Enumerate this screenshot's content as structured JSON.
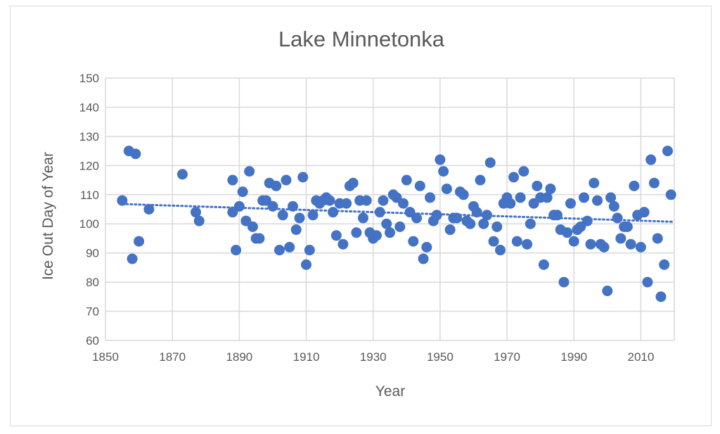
{
  "chart_data": {
    "type": "scatter",
    "title": "Lake Minnetonka",
    "xlabel": "Year",
    "ylabel": "Ice Out Day of Year",
    "xlim": [
      1850,
      2020
    ],
    "ylim": [
      60,
      150
    ],
    "x_ticks": [
      1850,
      1870,
      1890,
      1910,
      1930,
      1950,
      1970,
      1990,
      2010
    ],
    "y_ticks": [
      60,
      70,
      80,
      90,
      100,
      110,
      120,
      130,
      140,
      150
    ],
    "grid": true,
    "legend": "none",
    "colors": {
      "points": "#4472C4",
      "trendline": "#4472C4",
      "grid": "#d9d9d9",
      "text": "#595959"
    },
    "trendline": {
      "type": "linear",
      "style": "dotted",
      "x": [
        1855,
        2020
      ],
      "y": [
        106.8,
        100.7
      ]
    },
    "series": [
      {
        "points": [
          [
            1855,
            108
          ],
          [
            1857,
            125
          ],
          [
            1858,
            88
          ],
          [
            1859,
            124
          ],
          [
            1860,
            94
          ],
          [
            1863,
            105
          ],
          [
            1873,
            117
          ],
          [
            1877,
            104
          ],
          [
            1878,
            101
          ],
          [
            1888,
            104
          ],
          [
            1888,
            115
          ],
          [
            1889,
            91
          ],
          [
            1890,
            106
          ],
          [
            1891,
            111
          ],
          [
            1892,
            101
          ],
          [
            1893,
            118
          ],
          [
            1894,
            99
          ],
          [
            1895,
            95
          ],
          [
            1896,
            95
          ],
          [
            1897,
            108
          ],
          [
            1898,
            108
          ],
          [
            1899,
            114
          ],
          [
            1900,
            106
          ],
          [
            1901,
            113
          ],
          [
            1902,
            91
          ],
          [
            1903,
            103
          ],
          [
            1904,
            115
          ],
          [
            1905,
            92
          ],
          [
            1906,
            106
          ],
          [
            1907,
            98
          ],
          [
            1908,
            102
          ],
          [
            1909,
            116
          ],
          [
            1910,
            86
          ],
          [
            1911,
            91
          ],
          [
            1912,
            103
          ],
          [
            1913,
            108
          ],
          [
            1914,
            107
          ],
          [
            1915,
            108
          ],
          [
            1916,
            109
          ],
          [
            1917,
            108
          ],
          [
            1918,
            104
          ],
          [
            1919,
            96
          ],
          [
            1920,
            107
          ],
          [
            1921,
            93
          ],
          [
            1922,
            107
          ],
          [
            1923,
            113
          ],
          [
            1924,
            114
          ],
          [
            1925,
            97
          ],
          [
            1926,
            108
          ],
          [
            1927,
            102
          ],
          [
            1928,
            108
          ],
          [
            1929,
            97
          ],
          [
            1930,
            95
          ],
          [
            1931,
            96
          ],
          [
            1932,
            104
          ],
          [
            1933,
            108
          ],
          [
            1934,
            100
          ],
          [
            1935,
            97
          ],
          [
            1936,
            110
          ],
          [
            1937,
            109
          ],
          [
            1938,
            99
          ],
          [
            1939,
            107
          ],
          [
            1940,
            115
          ],
          [
            1941,
            104
          ],
          [
            1942,
            94
          ],
          [
            1943,
            102
          ],
          [
            1944,
            113
          ],
          [
            1945,
            88
          ],
          [
            1946,
            92
          ],
          [
            1947,
            109
          ],
          [
            1948,
            101
          ],
          [
            1949,
            103
          ],
          [
            1950,
            122
          ],
          [
            1951,
            118
          ],
          [
            1952,
            112
          ],
          [
            1953,
            98
          ],
          [
            1954,
            102
          ],
          [
            1955,
            102
          ],
          [
            1956,
            111
          ],
          [
            1957,
            110
          ],
          [
            1958,
            101
          ],
          [
            1959,
            100
          ],
          [
            1960,
            106
          ],
          [
            1961,
            104
          ],
          [
            1962,
            115
          ],
          [
            1963,
            100
          ],
          [
            1964,
            103
          ],
          [
            1965,
            121
          ],
          [
            1966,
            94
          ],
          [
            1967,
            99
          ],
          [
            1968,
            91
          ],
          [
            1969,
            107
          ],
          [
            1970,
            109
          ],
          [
            1971,
            107
          ],
          [
            1972,
            116
          ],
          [
            1973,
            94
          ],
          [
            1974,
            109
          ],
          [
            1975,
            118
          ],
          [
            1976,
            93
          ],
          [
            1977,
            100
          ],
          [
            1978,
            107
          ],
          [
            1979,
            113
          ],
          [
            1980,
            109
          ],
          [
            1981,
            86
          ],
          [
            1982,
            109
          ],
          [
            1983,
            112
          ],
          [
            1984,
            103
          ],
          [
            1985,
            103
          ],
          [
            1986,
            98
          ],
          [
            1987,
            80
          ],
          [
            1988,
            97
          ],
          [
            1989,
            107
          ],
          [
            1990,
            94
          ],
          [
            1991,
            98
          ],
          [
            1992,
            99
          ],
          [
            1993,
            109
          ],
          [
            1994,
            101
          ],
          [
            1995,
            93
          ],
          [
            1996,
            114
          ],
          [
            1997,
            108
          ],
          [
            1998,
            93
          ],
          [
            1999,
            92
          ],
          [
            2000,
            77
          ],
          [
            2001,
            109
          ],
          [
            2002,
            106
          ],
          [
            2003,
            102
          ],
          [
            2004,
            95
          ],
          [
            2005,
            99
          ],
          [
            2006,
            99
          ],
          [
            2007,
            93
          ],
          [
            2008,
            113
          ],
          [
            2009,
            103
          ],
          [
            2010,
            92
          ],
          [
            2011,
            104
          ],
          [
            2012,
            80
          ],
          [
            2013,
            122
          ],
          [
            2014,
            114
          ],
          [
            2015,
            95
          ],
          [
            2016,
            75
          ],
          [
            2017,
            86
          ],
          [
            2018,
            125
          ],
          [
            2019,
            110
          ]
        ]
      }
    ]
  }
}
